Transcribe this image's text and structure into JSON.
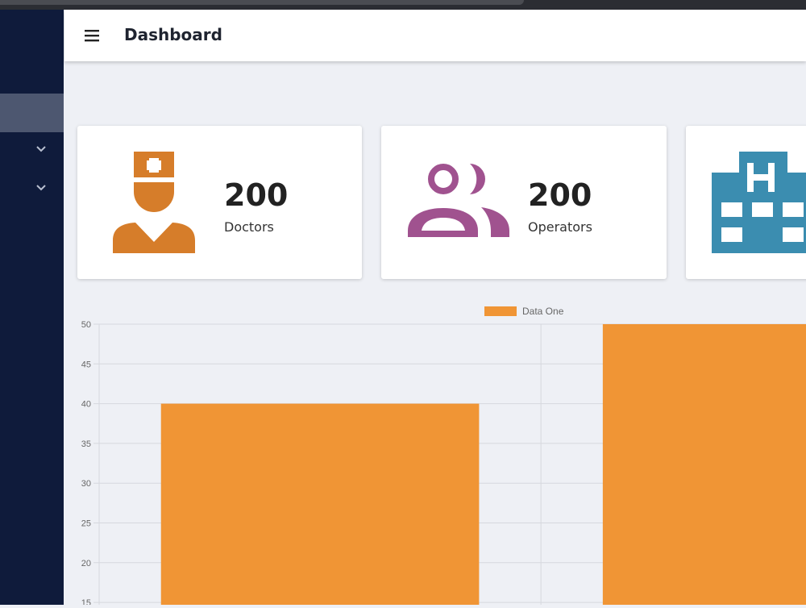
{
  "header": {
    "title": "Dashboard"
  },
  "icons": {
    "menu": "menu-icon",
    "doctor": "doctor-icon",
    "operators": "users-icon",
    "hospital": "hospital-icon",
    "chevron": "chevron-down-icon"
  },
  "stats": [
    {
      "value": "200",
      "label": "Doctors",
      "color": "#d67d2a"
    },
    {
      "value": "200",
      "label": "Operators",
      "color": "#a0528f"
    },
    {
      "value": "",
      "label": "",
      "color": "#3b8db0"
    }
  ],
  "colors": {
    "sidebar": "#0f1b3b",
    "sidebar_active": "#4d5770",
    "background": "#eef0f5",
    "bar": "#f09535"
  },
  "chart_data": {
    "type": "bar",
    "legend": [
      "Data One"
    ],
    "legend_position": "top-center",
    "series": [
      {
        "name": "Data One",
        "values": [
          40,
          50
        ]
      }
    ],
    "y_ticks": [
      15,
      20,
      25,
      30,
      35,
      40,
      45,
      50
    ],
    "ylim_visible": [
      15,
      50
    ],
    "grid": true
  }
}
